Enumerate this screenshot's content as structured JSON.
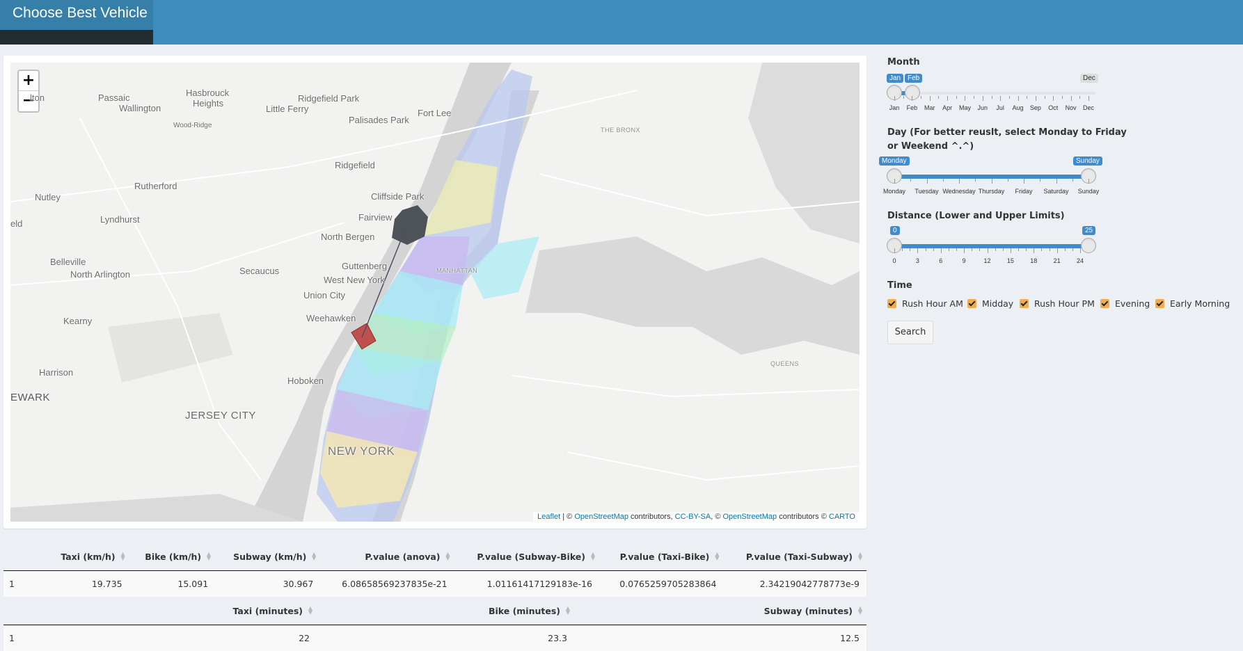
{
  "header": {
    "title": "Choose Best Vehicle"
  },
  "map": {
    "zoom_in": "+",
    "zoom_out": "−",
    "places": [
      {
        "text": "Passaic",
        "cls": ""
      },
      {
        "text": "Hasbrouck",
        "cls": ""
      },
      {
        "text": "Heights",
        "cls": ""
      },
      {
        "text": "Wallington",
        "cls": ""
      },
      {
        "text": "Ridgefield Park",
        "cls": ""
      },
      {
        "text": "Little Ferry",
        "cls": ""
      },
      {
        "text": "Palisades Park",
        "cls": ""
      },
      {
        "text": "Fort Lee",
        "cls": ""
      },
      {
        "text": "Wood-Ridge",
        "cls": "small"
      },
      {
        "text": "THE BRONX",
        "cls": "tiny"
      },
      {
        "text": "Ridgefield",
        "cls": ""
      },
      {
        "text": "Rutherford",
        "cls": ""
      },
      {
        "text": "Nutley",
        "cls": ""
      },
      {
        "text": "Cliffside Park",
        "cls": ""
      },
      {
        "text": "Lyndhurst",
        "cls": ""
      },
      {
        "text": "Fairview",
        "cls": ""
      },
      {
        "text": "North Bergen",
        "cls": ""
      },
      {
        "text": "Belleville",
        "cls": ""
      },
      {
        "text": "North Arlington",
        "cls": ""
      },
      {
        "text": "Secaucus",
        "cls": ""
      },
      {
        "text": "Guttenberg",
        "cls": ""
      },
      {
        "text": "MANHATTAN",
        "cls": "tiny"
      },
      {
        "text": "West New York",
        "cls": ""
      },
      {
        "text": "Union City",
        "cls": ""
      },
      {
        "text": "Kearny",
        "cls": ""
      },
      {
        "text": "Weehawken",
        "cls": ""
      },
      {
        "text": "QUEENS",
        "cls": "tiny"
      },
      {
        "text": "Harrison",
        "cls": ""
      },
      {
        "text": "Hoboken",
        "cls": ""
      },
      {
        "text": "EWARK",
        "cls": "big"
      },
      {
        "text": "JERSEY CITY",
        "cls": "big"
      },
      {
        "text": "NEW YORK",
        "cls": "xl"
      },
      {
        "text": "lton",
        "cls": ""
      },
      {
        "text": "eld",
        "cls": ""
      }
    ],
    "attribution": {
      "leaflet": "Leaflet",
      "sep1": " | © ",
      "osm1": "OpenStreetMap",
      "t1": " contributors, ",
      "ccbysa": "CC-BY-SA",
      "t2": ", © ",
      "osm2": "OpenStreetMap",
      "t3": " contributors © ",
      "carto": "CARTO"
    }
  },
  "month": {
    "label": "Month",
    "selected_from": "Jan",
    "selected_to": "Feb",
    "max_label": "Dec",
    "ticks": [
      "Jan",
      "Feb",
      "Mar",
      "Apr",
      "May",
      "Jun",
      "Jul",
      "Aug",
      "Sep",
      "Oct",
      "Nov",
      "Dec"
    ]
  },
  "day": {
    "label_line1": "Day (For better reuslt, select Monday to Friday",
    "label_line2": "or Weekend ^.^)",
    "selected_from": "Monday",
    "selected_to": "Sunday",
    "ticks": [
      "Monday",
      "Tuesday",
      "Wednesday",
      "Thursday",
      "Friday",
      "Saturday",
      "Sunday"
    ]
  },
  "distance": {
    "label": "Distance (Lower and Upper Limits)",
    "selected_from": "0",
    "selected_to": "25",
    "ticks": [
      "0",
      "3",
      "6",
      "9",
      "12",
      "15",
      "18",
      "21",
      "24"
    ]
  },
  "time": {
    "label": "Time",
    "options": [
      "Rush Hour AM",
      "Midday",
      "Rush Hour PM",
      "Evening",
      "Early Morning"
    ]
  },
  "search_label": "Search",
  "speed_table": {
    "headers": [
      "",
      "Taxi (km/h)",
      "Bike (km/h)",
      "Subway (km/h)",
      "P.value (anova)",
      "P.value (Subway-Bike)",
      "P.value (Taxi-Bike)",
      "P.value (Taxi-Subway)"
    ],
    "row": [
      "1",
      "19.735",
      "15.091",
      "30.967",
      "6.08658569237835e-21",
      "1.01161417129183e-16",
      "0.0765259705283864",
      "2.34219042778773e-9"
    ]
  },
  "time_table": {
    "headers": [
      "",
      "Taxi (minutes)",
      "Bike (minutes)",
      "Subway (minutes)"
    ],
    "row": [
      "1",
      "22",
      "23.3",
      "12.5"
    ]
  }
}
